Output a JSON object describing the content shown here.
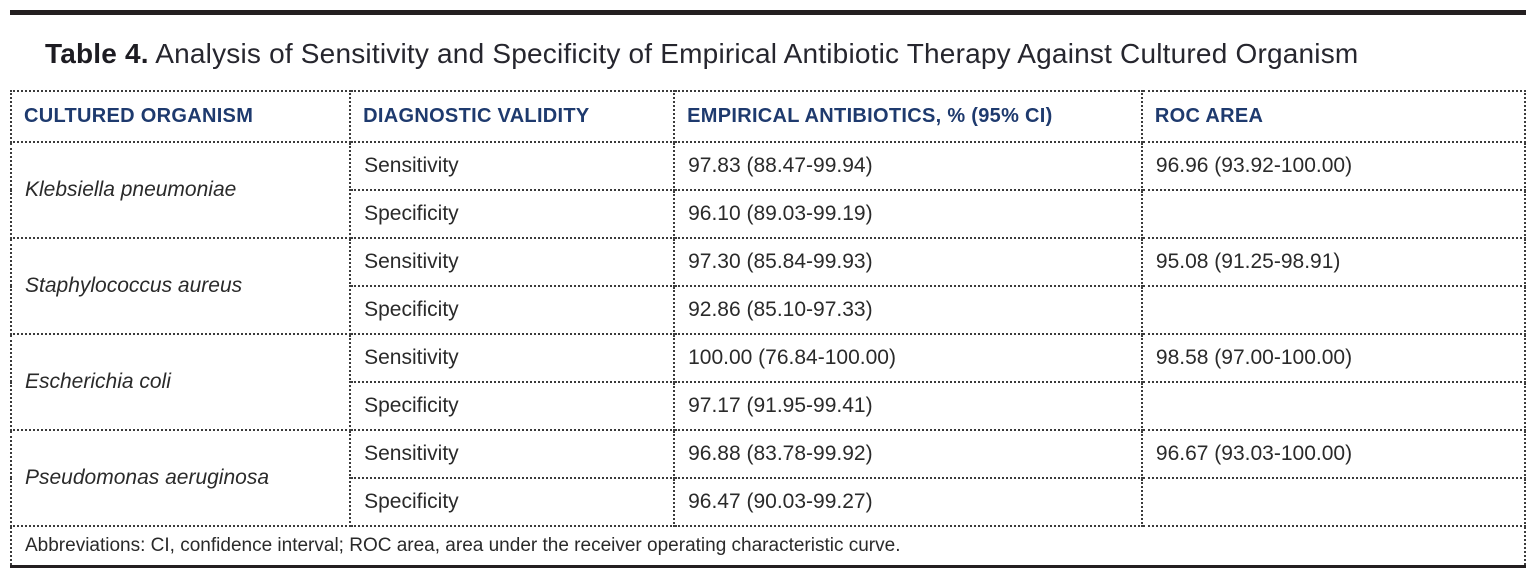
{
  "title": {
    "label": "Table 4.",
    "text": " Analysis of Sensitivity and Specificity of Empirical Antibiotic Therapy Against Cultured Organism"
  },
  "labels": {
    "sensitivity": "Sensitivity",
    "specificity": "Specificity"
  },
  "table": {
    "columns": {
      "organism": "CULTURED ORGANISM",
      "validity": "DIAGNOSTIC VALIDITY",
      "antibiotics": "EMPIRICAL ANTIBIOTICS, % (95% CI)",
      "roc": "ROC AREA"
    },
    "rows": [
      {
        "organism": "Klebsiella pneumoniae",
        "sensitivity": "97.83 (88.47-99.94)",
        "specificity": "96.10 (89.03-99.19)",
        "roc": "96.96 (93.92-100.00)"
      },
      {
        "organism": "Staphylococcus aureus",
        "sensitivity": "97.30 (85.84-99.93)",
        "specificity": "92.86 (85.10-97.33)",
        "roc": "95.08 (91.25-98.91)"
      },
      {
        "organism": "Escherichia coli",
        "sensitivity": "100.00 (76.84-100.00)",
        "specificity": "97.17 (91.95-99.41)",
        "roc": "98.58 (97.00-100.00)"
      },
      {
        "organism": "Pseudomonas aeruginosa",
        "sensitivity": "96.88 (83.78-99.92)",
        "specificity": "96.47 (90.03-99.27)",
        "roc": "96.67 (93.03-100.00)"
      }
    ],
    "footnote": "Abbreviations: CI, confidence interval; ROC area, area under the receiver operating characteristic curve."
  },
  "colors": {
    "header_text": "#1e3a6e",
    "body_text": "#2a2a2a",
    "rule": "#231f20"
  }
}
